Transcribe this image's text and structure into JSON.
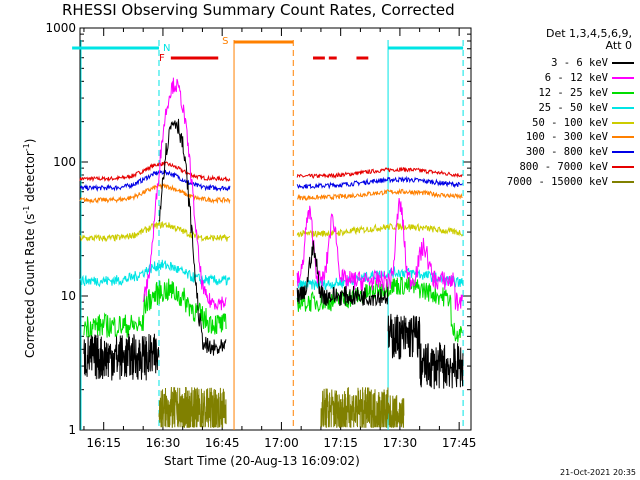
{
  "chart_data": {
    "type": "line",
    "title": "RHESSI Observing Summary Count Rates, Corrected",
    "xlabel": "Start Time (20-Aug-13 16:09:02)",
    "ylabel": "Corrected Count Rate (s",
    "ylabel_sup1": "-1",
    "ylabel_mid": " detector",
    "ylabel_sup2": "-1",
    "ylabel_end": ")",
    "y_scale": "log",
    "ylim": [
      1,
      1000
    ],
    "xlim": [
      "16:09",
      "17:48"
    ],
    "x_ticks": [
      "16:15",
      "16:30",
      "16:45",
      "17:00",
      "17:15",
      "17:30",
      "17:45"
    ],
    "y_ticks": [
      "1",
      "10",
      "100",
      "1000"
    ],
    "detector_info_line1": "Det 1,3,4,5,6,9,",
    "detector_info_line2": "Att 0",
    "timestamp": "21-Oct-2021 20:35",
    "flags": {
      "night": "N",
      "flare": "F",
      "saa": "S"
    },
    "series": [
      {
        "name": "3 - 6 keV",
        "color": "#000000"
      },
      {
        "name": "6 - 12 keV",
        "color": "#ff00ff"
      },
      {
        "name": "12 - 25 keV",
        "color": "#00dd00"
      },
      {
        "name": "25 - 50 keV",
        "color": "#00e5e5"
      },
      {
        "name": "50 - 100 keV",
        "color": "#cccc00"
      },
      {
        "name": "100 - 300 keV",
        "color": "#ff8000"
      },
      {
        "name": "300 - 800 keV",
        "color": "#0000e6"
      },
      {
        "name": "800 - 7000 keV",
        "color": "#e60000"
      },
      {
        "name": "7000 - 15000 keV",
        "color": "#808000"
      }
    ]
  }
}
